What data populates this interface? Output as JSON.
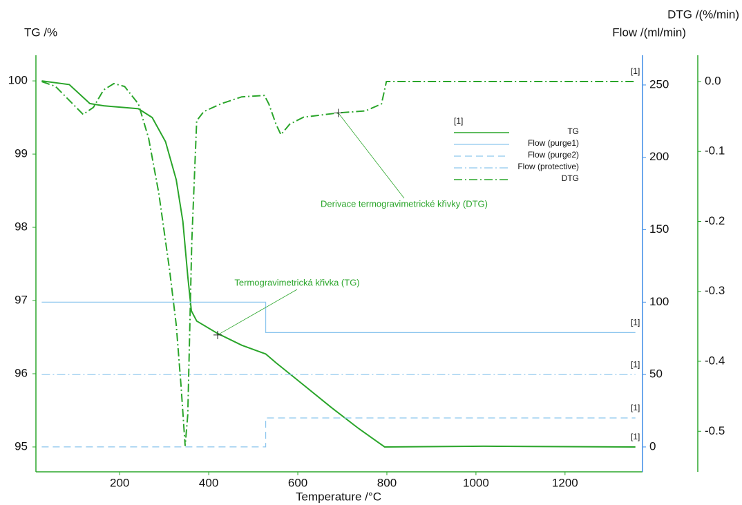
{
  "chart_data": {
    "type": "line",
    "xlabel": "Temperature /°C",
    "ylabel": "TG /%",
    "y2label": "Flow /(ml/min)",
    "y3label": "DTG /(%/min)",
    "xlim": [
      12,
      1374
    ],
    "xticks": [
      200,
      400,
      600,
      800,
      1000,
      1200
    ],
    "ylim": [
      94.66,
      100.35
    ],
    "yticks": [
      95,
      96,
      97,
      98,
      99,
      100
    ],
    "y2lim": [
      -17.2,
      270.5
    ],
    "y2ticks": [
      0,
      50,
      100,
      150,
      200,
      250
    ],
    "y3lim": [
      -0.558,
      0.0375
    ],
    "y3ticks": [
      {
        "value": 0,
        "label": "0.0"
      },
      -0.1,
      -0.2,
      -0.3,
      -0.4,
      -0.5
    ],
    "legend_title": "[1]",
    "series": [
      {
        "name": "TG",
        "color": "#2aa52a",
        "style": "solid",
        "axis": "y",
        "end_label": "[1]",
        "x": [
          25,
          87,
          133,
          164,
          242,
          273,
          303,
          327,
          342,
          353,
          361,
          373,
          420,
          474,
          528,
          551,
          598,
          675,
          737,
          795,
          1017,
          1358
        ],
        "values": [
          100.0,
          99.95,
          99.69,
          99.66,
          99.62,
          99.5,
          99.17,
          98.65,
          98.08,
          97.33,
          96.86,
          96.72,
          96.55,
          96.39,
          96.27,
          96.15,
          95.92,
          95.54,
          95.25,
          95.0,
          95.01,
          95.0
        ]
      },
      {
        "name": "Flow (purge1)",
        "color": "#8cc6ee",
        "style": "solid",
        "axis": "y2",
        "end_label": "[1]",
        "x": [
          25,
          528,
          528,
          1358
        ],
        "values": [
          100,
          100,
          79,
          79
        ]
      },
      {
        "name": "Flow (purge2)",
        "color": "#8cc6ee",
        "style": "dashed",
        "axis": "y2",
        "end_label": "[1]",
        "x": [
          25,
          528,
          528,
          1358
        ],
        "values": [
          0,
          0,
          20,
          20
        ]
      },
      {
        "name": "Flow (protective)",
        "color": "#8cc6ee",
        "style": "dashdot",
        "axis": "y2",
        "end_label": "[1]",
        "x": [
          25,
          1358
        ],
        "values": [
          50,
          50
        ]
      },
      {
        "name": "DTG",
        "color": "#2aa52a",
        "style": "dashdot",
        "axis": "y3",
        "end_label": "[1]",
        "x": [
          25,
          56,
          87,
          118,
          141,
          164,
          187,
          211,
          242,
          265,
          288,
          312,
          327,
          338,
          347,
          353,
          362,
          373,
          389,
          427,
          474,
          525,
          535,
          551,
          562,
          582,
          613,
          690,
          752,
          788,
          799,
          1358
        ],
        "values": [
          0.0,
          -0.007,
          -0.027,
          -0.047,
          -0.037,
          -0.012,
          -0.003,
          -0.007,
          -0.032,
          -0.081,
          -0.16,
          -0.269,
          -0.348,
          -0.437,
          -0.521,
          -0.476,
          -0.229,
          -0.056,
          -0.043,
          -0.032,
          -0.022,
          -0.02,
          -0.032,
          -0.061,
          -0.076,
          -0.061,
          -0.051,
          -0.045,
          -0.042,
          -0.032,
          0.0,
          0.0
        ]
      }
    ],
    "annotations": [
      {
        "text": "Termogravimetrická křivka (TG)",
        "x": 420,
        "y": 96.53,
        "axis": "y"
      },
      {
        "text": "Derivace termogravimetrické křivky (DTG)",
        "x": 691,
        "y": -0.045,
        "axis": "y3"
      }
    ]
  }
}
